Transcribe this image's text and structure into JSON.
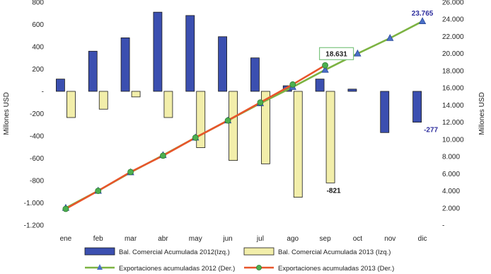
{
  "chart_data": {
    "type": "bar",
    "categories": [
      "ene",
      "feb",
      "mar",
      "abr",
      "may",
      "jun",
      "jul",
      "ago",
      "sep",
      "oct",
      "nov",
      "dic"
    ],
    "ylabel_left": "Millones USD",
    "ylabel_right": "Millones USD",
    "ylim_left": [
      -1200,
      800
    ],
    "ylim_right": [
      0,
      26000
    ],
    "yticks_left": [
      "-1.200",
      "-1.000",
      "-800",
      "-600",
      "-400",
      "-200",
      "-",
      "200",
      "400",
      "600",
      "800"
    ],
    "yticks_right": [
      "-",
      "2.000",
      "4.000",
      "6.000",
      "8.000",
      "10.000",
      "12.000",
      "14.000",
      "16.000",
      "18.000",
      "20.000",
      "22.000",
      "24.000",
      "26.000"
    ],
    "grid": false,
    "legend_position": "bottom",
    "series": [
      {
        "name": "Bal. Comercial Acumulada 2012(Izq.)",
        "type": "bar",
        "axis": "left",
        "color": "#3b4fb0",
        "values": [
          110,
          360,
          480,
          710,
          680,
          490,
          300,
          50,
          110,
          20,
          -370,
          -277
        ]
      },
      {
        "name": "Bal. Comercial Acumulada 2013 (Izq.)",
        "type": "bar",
        "axis": "left",
        "color": "#f2eeaa",
        "values": [
          -235,
          -160,
          -50,
          -235,
          -505,
          -620,
          -650,
          -950,
          -821,
          null,
          null,
          null
        ]
      },
      {
        "name": "Exportaciones acumuladas 2012 (Der.)",
        "type": "line",
        "axis": "right",
        "color": "#7cb342",
        "marker": "triangle",
        "values": [
          2000,
          4000,
          6150,
          8150,
          10200,
          12200,
          14200,
          16100,
          18100,
          20000,
          21800,
          23765
        ]
      },
      {
        "name": "Exportaciones acumuladas 2013 (Der.)",
        "type": "line",
        "axis": "right",
        "color": "#e8552b",
        "marker": "circle",
        "values": [
          1900,
          4000,
          6200,
          8100,
          10200,
          12200,
          14300,
          16400,
          18631,
          null,
          null,
          null
        ]
      }
    ],
    "annotations": [
      {
        "text": "23.765",
        "series": 2,
        "index": 11,
        "color": "#2e2e9e"
      },
      {
        "text": "18.631",
        "series": 3,
        "index": 8,
        "color": "#222222",
        "boxed": true
      },
      {
        "text": "-821",
        "series": 1,
        "index": 8,
        "color": "#111111"
      },
      {
        "text": "-277",
        "series": 0,
        "index": 11,
        "color": "#2e2e9e"
      }
    ]
  }
}
